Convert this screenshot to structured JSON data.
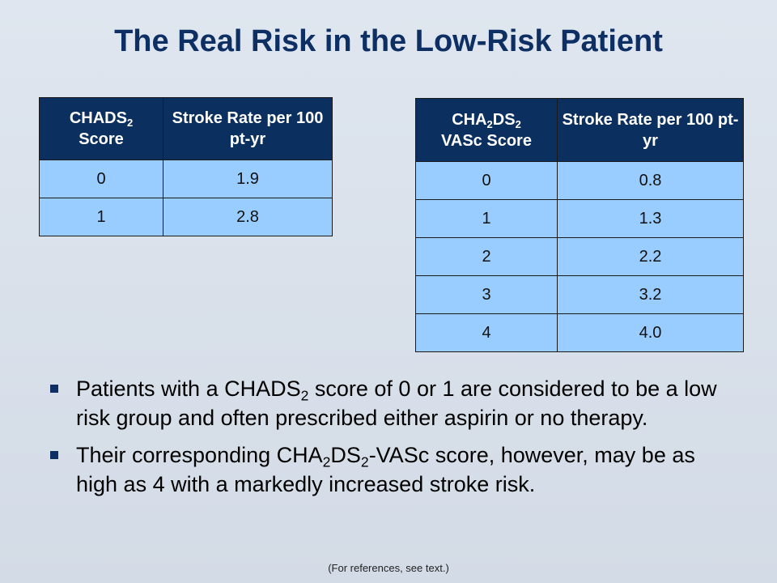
{
  "title": "The Real Risk in the Low-Risk Patient",
  "table_chads": {
    "header_score": {
      "pre": "CHADS",
      "sub": "2",
      "post": " Score"
    },
    "header_rate": "Stroke Rate per 100 pt-yr",
    "rows": [
      {
        "score": "0",
        "rate": "1.9"
      },
      {
        "score": "1",
        "rate": "2.8"
      }
    ]
  },
  "table_vasc": {
    "header_score": {
      "p1": "CHA",
      "s1": "2",
      "p2": "DS",
      "s2": "2",
      "p3": "VASc Score"
    },
    "header_rate": "Stroke Rate per 100 pt-yr",
    "rows": [
      {
        "score": "0",
        "rate": "0.8"
      },
      {
        "score": "1",
        "rate": "1.3"
      },
      {
        "score": "2",
        "rate": "2.2"
      },
      {
        "score": "3",
        "rate": "3.2"
      },
      {
        "score": "4",
        "rate": "4.0"
      }
    ]
  },
  "bullets": {
    "b1": {
      "a": "Patients with a CHADS",
      "sub": "2",
      "b": " score of 0 or 1 are considered to be a low risk group and often prescribed either aspirin or no therapy."
    },
    "b2": {
      "a": "Their corresponding CHA",
      "sub1": "2",
      "b": "DS",
      "sub2": "2",
      "c": "-VASc score, however, may be as high as 4 with a markedly increased stroke risk."
    }
  },
  "footnote": "(For references, see text.)",
  "colors": {
    "header_bg": "#0b2f5e",
    "cell_bg": "#99ccff",
    "title": "#0d2f63"
  }
}
